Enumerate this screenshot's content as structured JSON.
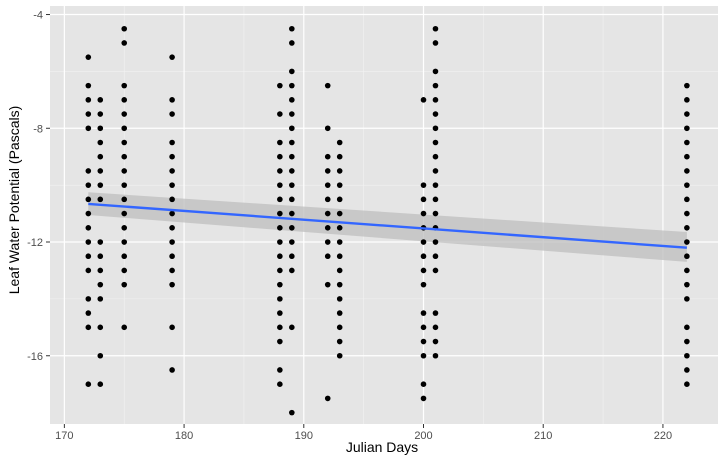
{
  "colors": {
    "panel_bg": "#e5e5e5",
    "grid_major": "#ffffff",
    "grid_minor": "#f2f2f2",
    "points": "#000000",
    "fit_line": "#3366ff",
    "ci_band": "#bdbdbd",
    "tick": "#333333",
    "tick_label": "#4d4d4d"
  },
  "chart_data": {
    "type": "scatter",
    "title": "",
    "xlabel": "Julian Days",
    "ylabel": "Leaf Water Potential (Pascals)",
    "xlim": [
      168.8,
      224.6
    ],
    "ylim": [
      -18.4,
      -3.7
    ],
    "x_ticks": [
      170,
      180,
      190,
      200,
      210,
      220
    ],
    "y_ticks": [
      -16,
      -12,
      -8,
      -4
    ],
    "grid": true,
    "legend": "none",
    "series": [
      {
        "points": [
          [
            172,
            -5.5
          ],
          [
            172,
            -6.5
          ],
          [
            172,
            -7
          ],
          [
            172,
            -7.5
          ],
          [
            172,
            -8
          ],
          [
            172,
            -9.5
          ],
          [
            172,
            -10
          ],
          [
            172,
            -10.5
          ],
          [
            172,
            -11
          ],
          [
            172,
            -11.5
          ],
          [
            172,
            -12
          ],
          [
            172,
            -12.5
          ],
          [
            172,
            -13
          ],
          [
            172,
            -14
          ],
          [
            172,
            -14.5
          ],
          [
            172,
            -15
          ],
          [
            172,
            -17
          ],
          [
            173,
            -7
          ],
          [
            173,
            -7.5
          ],
          [
            173,
            -8
          ],
          [
            173,
            -8.5
          ],
          [
            173,
            -9
          ],
          [
            173,
            -9.5
          ],
          [
            173,
            -10
          ],
          [
            173,
            -10.5
          ],
          [
            173,
            -12
          ],
          [
            173,
            -12.5
          ],
          [
            173,
            -13
          ],
          [
            173,
            -13.5
          ],
          [
            173,
            -14
          ],
          [
            173,
            -15
          ],
          [
            173,
            -16
          ],
          [
            173,
            -17
          ],
          [
            175,
            -4.5
          ],
          [
            175,
            -5
          ],
          [
            175,
            -6.5
          ],
          [
            175,
            -7
          ],
          [
            175,
            -7.5
          ],
          [
            175,
            -8
          ],
          [
            175,
            -8.5
          ],
          [
            175,
            -9
          ],
          [
            175,
            -9.5
          ],
          [
            175,
            -10
          ],
          [
            175,
            -10.5
          ],
          [
            175,
            -11
          ],
          [
            175,
            -11.5
          ],
          [
            175,
            -12
          ],
          [
            175,
            -12.5
          ],
          [
            175,
            -13
          ],
          [
            175,
            -13.5
          ],
          [
            175,
            -15
          ],
          [
            179,
            -5.5
          ],
          [
            179,
            -7
          ],
          [
            179,
            -7.5
          ],
          [
            179,
            -8.5
          ],
          [
            179,
            -9
          ],
          [
            179,
            -9.5
          ],
          [
            179,
            -10
          ],
          [
            179,
            -10.5
          ],
          [
            179,
            -11
          ],
          [
            179,
            -11.5
          ],
          [
            179,
            -12
          ],
          [
            179,
            -12.5
          ],
          [
            179,
            -13
          ],
          [
            179,
            -13.5
          ],
          [
            179,
            -15
          ],
          [
            179,
            -16.5
          ],
          [
            188,
            -6.5
          ],
          [
            188,
            -7.5
          ],
          [
            188,
            -8.5
          ],
          [
            188,
            -9
          ],
          [
            188,
            -9.5
          ],
          [
            188,
            -10
          ],
          [
            188,
            -10.5
          ],
          [
            188,
            -11
          ],
          [
            188,
            -11.5
          ],
          [
            188,
            -12
          ],
          [
            188,
            -12.5
          ],
          [
            188,
            -13
          ],
          [
            188,
            -13.5
          ],
          [
            188,
            -14
          ],
          [
            188,
            -14.5
          ],
          [
            188,
            -15
          ],
          [
            188,
            -15.5
          ],
          [
            188,
            -16.5
          ],
          [
            188,
            -17
          ],
          [
            189,
            -4.5
          ],
          [
            189,
            -5
          ],
          [
            189,
            -6
          ],
          [
            189,
            -6.5
          ],
          [
            189,
            -7
          ],
          [
            189,
            -7.5
          ],
          [
            189,
            -8
          ],
          [
            189,
            -8.5
          ],
          [
            189,
            -9
          ],
          [
            189,
            -9.5
          ],
          [
            189,
            -10
          ],
          [
            189,
            -10.5
          ],
          [
            189,
            -11
          ],
          [
            189,
            -11.5
          ],
          [
            189,
            -12
          ],
          [
            189,
            -12.5
          ],
          [
            189,
            -13
          ],
          [
            189,
            -15
          ],
          [
            189,
            -18
          ],
          [
            192,
            -6.5
          ],
          [
            192,
            -8
          ],
          [
            192,
            -9
          ],
          [
            192,
            -9.5
          ],
          [
            192,
            -10
          ],
          [
            192,
            -10.5
          ],
          [
            192,
            -11
          ],
          [
            192,
            -11.5
          ],
          [
            192,
            -12
          ],
          [
            192,
            -12.5
          ],
          [
            192,
            -13.5
          ],
          [
            192,
            -17.5
          ],
          [
            193,
            -8.5
          ],
          [
            193,
            -9
          ],
          [
            193,
            -9.5
          ],
          [
            193,
            -10
          ],
          [
            193,
            -10.5
          ],
          [
            193,
            -11
          ],
          [
            193,
            -11.5
          ],
          [
            193,
            -12
          ],
          [
            193,
            -12.5
          ],
          [
            193,
            -13
          ],
          [
            193,
            -13.5
          ],
          [
            193,
            -14
          ],
          [
            193,
            -14.5
          ],
          [
            193,
            -15
          ],
          [
            193,
            -15.5
          ],
          [
            193,
            -16
          ],
          [
            200,
            -7
          ],
          [
            200,
            -10
          ],
          [
            200,
            -10.5
          ],
          [
            200,
            -11
          ],
          [
            200,
            -11.5
          ],
          [
            200,
            -12
          ],
          [
            200,
            -12.5
          ],
          [
            200,
            -13
          ],
          [
            200,
            -13.5
          ],
          [
            200,
            -14.5
          ],
          [
            200,
            -15
          ],
          [
            200,
            -15.5
          ],
          [
            200,
            -16
          ],
          [
            200,
            -17
          ],
          [
            200,
            -17.5
          ],
          [
            201,
            -4.5
          ],
          [
            201,
            -5
          ],
          [
            201,
            -6
          ],
          [
            201,
            -6.5
          ],
          [
            201,
            -7
          ],
          [
            201,
            -7.5
          ],
          [
            201,
            -8
          ],
          [
            201,
            -8.5
          ],
          [
            201,
            -9
          ],
          [
            201,
            -9.5
          ],
          [
            201,
            -10
          ],
          [
            201,
            -10.5
          ],
          [
            201,
            -11
          ],
          [
            201,
            -11.5
          ],
          [
            201,
            -12
          ],
          [
            201,
            -12.5
          ],
          [
            201,
            -13
          ],
          [
            201,
            -14.5
          ],
          [
            201,
            -15
          ],
          [
            201,
            -15.5
          ],
          [
            201,
            -16
          ],
          [
            222,
            -6.5
          ],
          [
            222,
            -7
          ],
          [
            222,
            -7.5
          ],
          [
            222,
            -8
          ],
          [
            222,
            -8.5
          ],
          [
            222,
            -9
          ],
          [
            222,
            -9.5
          ],
          [
            222,
            -10
          ],
          [
            222,
            -10.5
          ],
          [
            222,
            -11
          ],
          [
            222,
            -11.5
          ],
          [
            222,
            -12
          ],
          [
            222,
            -12.5
          ],
          [
            222,
            -13
          ],
          [
            222,
            -13.5
          ],
          [
            222,
            -14
          ],
          [
            222,
            -15
          ],
          [
            222,
            -15.5
          ],
          [
            222,
            -16
          ],
          [
            222,
            -16.5
          ],
          [
            222,
            -17
          ]
        ]
      }
    ],
    "trend_line": {
      "method": "linear",
      "x": [
        172,
        222
      ],
      "y": [
        -10.66,
        -12.2
      ],
      "ci_lower": [
        -11.05,
        -12.7
      ],
      "ci_upper": [
        -10.25,
        -11.65
      ]
    }
  }
}
